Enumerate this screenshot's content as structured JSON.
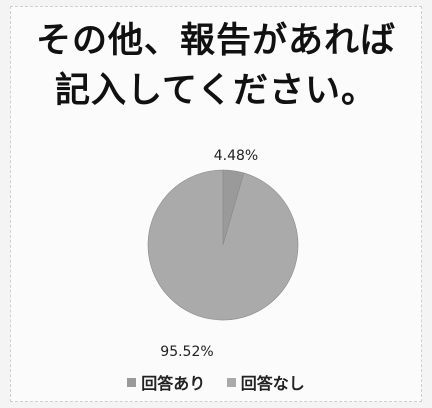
{
  "chart_data": {
    "type": "pie",
    "title_lines": [
      "その他、報告があれば",
      "記入してください。"
    ],
    "categories": [
      "回答あり",
      "回答なし"
    ],
    "values": [
      4.48,
      95.52
    ],
    "data_labels": [
      "4.48%",
      "95.52%"
    ],
    "legend": [
      "回答あり",
      "回答なし"
    ],
    "legend_position": "bottom",
    "colors": [
      "#9a9a9a",
      "#aaaaaa"
    ]
  }
}
